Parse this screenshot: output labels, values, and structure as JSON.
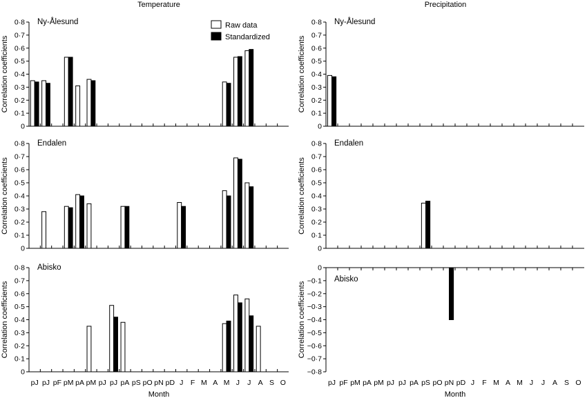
{
  "figure": {
    "column_titles": [
      "Temperature",
      "Precipitation"
    ],
    "legend": {
      "raw_label": "Raw data",
      "std_label": "Standardized"
    },
    "colors": {
      "raw": "#ffffff",
      "standardized": "#000000",
      "axis": "#000000"
    }
  },
  "chart_data": [
    {
      "type": "bar",
      "column": "Temperature",
      "site_label": "Ny-Ålesund",
      "ylabel": "Correlation coefficients",
      "xlabel": "",
      "ylim": [
        0,
        0.8
      ],
      "yticks": [
        "0",
        "0·1",
        "0·2",
        "0·3",
        "0·4",
        "0·5",
        "0·6",
        "0·7",
        "0·8"
      ],
      "categories": [
        "pJ",
        "pJ",
        "pF",
        "pM",
        "pA",
        "pM",
        "pJ",
        "pJ",
        "pA",
        "pS",
        "pO",
        "pN",
        "pD",
        "J",
        "F",
        "M",
        "A",
        "M",
        "J",
        "J",
        "A",
        "S",
        "O"
      ],
      "tick_labels_shown": false,
      "legend": true,
      "series": [
        {
          "name": "Raw data",
          "values": [
            0.35,
            0.35,
            null,
            0.53,
            0.31,
            0.36,
            null,
            null,
            null,
            null,
            null,
            null,
            null,
            null,
            null,
            null,
            null,
            0.34,
            0.53,
            0.58,
            null,
            null,
            null
          ]
        },
        {
          "name": "Standardized",
          "values": [
            0.34,
            0.33,
            null,
            0.53,
            null,
            0.35,
            null,
            null,
            null,
            null,
            null,
            null,
            null,
            null,
            null,
            null,
            null,
            0.33,
            0.535,
            0.59,
            null,
            null,
            null
          ]
        }
      ]
    },
    {
      "type": "bar",
      "column": "Precipitation",
      "site_label": "Ny-Ålesund",
      "ylabel": "Correlation coefficients",
      "xlabel": "",
      "ylim": [
        0,
        0.8
      ],
      "yticks": [
        "0",
        "0·1",
        "0·2",
        "0·3",
        "0·4",
        "0·5",
        "0·6",
        "0·7",
        "0·8"
      ],
      "categories": [
        "pJ",
        "pF",
        "pM",
        "pA",
        "pM",
        "pJ",
        "pJ",
        "pA",
        "pS",
        "pO",
        "pN",
        "pD",
        "J",
        "F",
        "M",
        "A",
        "M",
        "J",
        "J",
        "A",
        "S",
        "O"
      ],
      "tick_labels_shown": false,
      "legend": false,
      "series": [
        {
          "name": "Raw data",
          "values": [
            0.39,
            null,
            null,
            null,
            null,
            null,
            null,
            null,
            null,
            null,
            null,
            null,
            null,
            null,
            null,
            null,
            null,
            null,
            null,
            null,
            null,
            null
          ]
        },
        {
          "name": "Standardized",
          "values": [
            0.38,
            null,
            null,
            null,
            null,
            null,
            null,
            null,
            null,
            null,
            null,
            null,
            null,
            null,
            null,
            null,
            null,
            null,
            null,
            null,
            null,
            null
          ]
        }
      ]
    },
    {
      "type": "bar",
      "column": "Temperature",
      "site_label": "Endalen",
      "ylabel": "Correlation coefficients",
      "xlabel": "",
      "ylim": [
        0,
        0.8
      ],
      "yticks": [
        "0",
        "0·1",
        "0·2",
        "0·3",
        "0·4",
        "0·5",
        "0·6",
        "0·7",
        "0·8"
      ],
      "categories": [
        "pJ",
        "pJ",
        "pF",
        "pM",
        "pA",
        "pM",
        "pJ",
        "pJ",
        "pA",
        "pS",
        "pO",
        "pN",
        "pD",
        "J",
        "F",
        "M",
        "A",
        "M",
        "J",
        "J",
        "A",
        "S",
        "O"
      ],
      "tick_labels_shown": false,
      "legend": false,
      "series": [
        {
          "name": "Raw data",
          "values": [
            null,
            0.28,
            null,
            0.32,
            0.41,
            0.34,
            null,
            null,
            0.32,
            null,
            null,
            null,
            null,
            0.35,
            null,
            null,
            null,
            0.44,
            0.69,
            0.5,
            null,
            null,
            null
          ]
        },
        {
          "name": "Standardized",
          "values": [
            null,
            null,
            null,
            0.31,
            0.4,
            null,
            null,
            null,
            0.32,
            null,
            null,
            null,
            null,
            0.32,
            null,
            null,
            null,
            0.4,
            0.68,
            0.47,
            null,
            null,
            null
          ]
        }
      ]
    },
    {
      "type": "bar",
      "column": "Precipitation",
      "site_label": "Endalen",
      "ylabel": "Correlation coefficients",
      "xlabel": "",
      "ylim": [
        0,
        0.8
      ],
      "yticks": [
        "0",
        "0·1",
        "0·2",
        "0·3",
        "0·4",
        "0·5",
        "0·6",
        "0·7",
        "0·8"
      ],
      "categories": [
        "pJ",
        "pF",
        "pM",
        "pA",
        "pM",
        "pJ",
        "pJ",
        "pA",
        "pS",
        "pO",
        "pN",
        "pD",
        "J",
        "F",
        "M",
        "A",
        "M",
        "J",
        "J",
        "A",
        "S",
        "O"
      ],
      "tick_labels_shown": false,
      "legend": false,
      "series": [
        {
          "name": "Raw data",
          "values": [
            null,
            null,
            null,
            null,
            null,
            null,
            null,
            null,
            0.345,
            null,
            null,
            null,
            null,
            null,
            null,
            null,
            null,
            null,
            null,
            null,
            null,
            null
          ]
        },
        {
          "name": "Standardized",
          "values": [
            null,
            null,
            null,
            null,
            null,
            null,
            null,
            null,
            0.36,
            null,
            null,
            null,
            null,
            null,
            null,
            null,
            null,
            null,
            null,
            null,
            null,
            null
          ]
        }
      ]
    },
    {
      "type": "bar",
      "column": "Temperature",
      "site_label": "Abisko",
      "ylabel": "Correlation coefficients",
      "xlabel": "Month",
      "ylim": [
        0,
        0.8
      ],
      "yticks": [
        "0",
        "0·1",
        "0·2",
        "0·3",
        "0·4",
        "0·5",
        "0·6",
        "0·7",
        "0·8"
      ],
      "categories": [
        "pJ",
        "pJ",
        "pF",
        "pM",
        "pA",
        "pM",
        "pJ",
        "pJ",
        "pA",
        "pS",
        "pO",
        "pN",
        "pD",
        "J",
        "F",
        "M",
        "A",
        "M",
        "J",
        "J",
        "A",
        "S",
        "O"
      ],
      "tick_labels_shown": true,
      "legend": false,
      "series": [
        {
          "name": "Raw data",
          "values": [
            null,
            null,
            null,
            null,
            null,
            0.35,
            null,
            0.51,
            0.38,
            null,
            null,
            null,
            null,
            null,
            null,
            null,
            null,
            0.37,
            0.59,
            0.56,
            0.35,
            null,
            null
          ]
        },
        {
          "name": "Standardized",
          "values": [
            null,
            null,
            null,
            null,
            null,
            null,
            null,
            0.42,
            null,
            null,
            null,
            null,
            null,
            null,
            null,
            null,
            null,
            0.39,
            0.53,
            0.43,
            null,
            null,
            null
          ]
        }
      ]
    },
    {
      "type": "bar",
      "column": "Precipitation",
      "site_label": "Abisko",
      "ylabel": "Correlation coefficients",
      "xlabel": "Month",
      "ylim": [
        -0.8,
        0
      ],
      "yticks": [
        "−0·8",
        "−0·7",
        "−0·6",
        "−0·5",
        "−0·4",
        "−0·3",
        "−0·2",
        "−0·1",
        "0"
      ],
      "categories": [
        "pJ",
        "pF",
        "pM",
        "pA",
        "pM",
        "pJ",
        "pJ",
        "pA",
        "pS",
        "pO",
        "pN",
        "pD",
        "J",
        "F",
        "M",
        "A",
        "M",
        "J",
        "J",
        "A",
        "S",
        "O"
      ],
      "tick_labels_shown": true,
      "legend": false,
      "series": [
        {
          "name": "Raw data",
          "values": [
            null,
            null,
            null,
            null,
            null,
            null,
            null,
            null,
            null,
            null,
            null,
            null,
            null,
            null,
            null,
            null,
            null,
            null,
            null,
            null,
            null,
            null
          ]
        },
        {
          "name": "Standardized",
          "values": [
            null,
            null,
            null,
            null,
            null,
            null,
            null,
            null,
            null,
            null,
            -0.4,
            null,
            null,
            null,
            null,
            null,
            null,
            null,
            null,
            null,
            null,
            null
          ]
        }
      ]
    }
  ]
}
